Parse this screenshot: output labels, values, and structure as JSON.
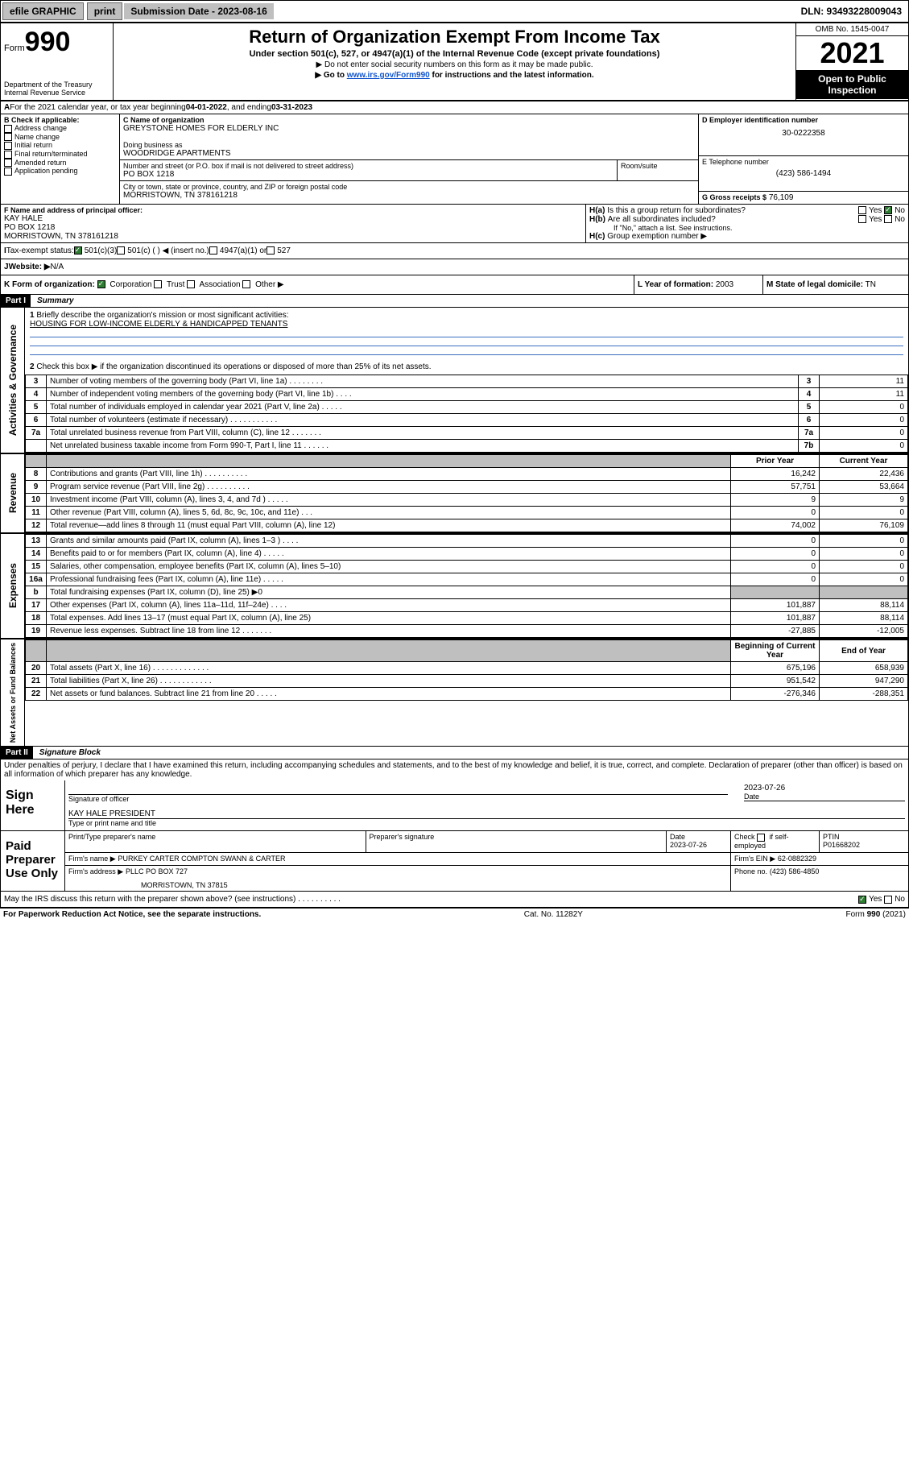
{
  "topbar": {
    "efile": "efile GRAPHIC",
    "print": "print",
    "submission": "Submission Date - 2023-08-16",
    "dln": "DLN: 93493228009043"
  },
  "header": {
    "form_label": "Form",
    "form_number": "990",
    "title": "Return of Organization Exempt From Income Tax",
    "subtitle": "Under section 501(c), 527, or 4947(a)(1) of the Internal Revenue Code (except private foundations)",
    "note1": "▶ Do not enter social security numbers on this form as it may be made public.",
    "note2_pre": "▶ Go to ",
    "note2_link": "www.irs.gov/Form990",
    "note2_post": " for instructions and the latest information.",
    "dept": "Department of the Treasury",
    "irs": "Internal Revenue Service",
    "omb": "OMB No. 1545-0047",
    "year": "2021",
    "open": "Open to Public Inspection"
  },
  "A": {
    "text": "For the 2021 calendar year, or tax year beginning ",
    "begin": "04-01-2022",
    "mid": " , and ending ",
    "end": "03-31-2023"
  },
  "B": {
    "label": "B Check if applicable:",
    "opts": [
      "Address change",
      "Name change",
      "Initial return",
      "Final return/terminated",
      "Amended return",
      "Application pending"
    ]
  },
  "C": {
    "name_label": "C Name of organization",
    "name": "GREYSTONE HOMES FOR ELDERLY INC",
    "dba_label": "Doing business as",
    "dba": "WOODRIDGE APARTMENTS",
    "street_label": "Number and street (or P.O. box if mail is not delivered to street address)",
    "room_label": "Room/suite",
    "street": "PO BOX 1218",
    "city_label": "City or town, state or province, country, and ZIP or foreign postal code",
    "city": "MORRISTOWN, TN  378161218"
  },
  "D": {
    "label": "D Employer identification number",
    "value": "30-0222358"
  },
  "E": {
    "label": "E Telephone number",
    "value": "(423) 586-1494"
  },
  "G": {
    "label": "G Gross receipts $",
    "value": "76,109"
  },
  "F": {
    "label": "F Name and address of principal officer:",
    "name": "KAY HALE",
    "street": "PO BOX 1218",
    "city": "MORRISTOWN, TN  378161218"
  },
  "H": {
    "a": "Is this a group return for subordinates?",
    "b": "Are all subordinates included?",
    "b_note": "If \"No,\" attach a list. See instructions.",
    "c": "Group exemption number ▶",
    "yes": "Yes",
    "no": "No"
  },
  "I": {
    "label": "Tax-exempt status:",
    "o1": "501(c)(3)",
    "o2": "501(c) (  ) ◀ (insert no.)",
    "o3": "4947(a)(1) or",
    "o4": "527"
  },
  "J": {
    "label": "Website: ▶",
    "value": "N/A"
  },
  "K": {
    "label": "K Form of organization:",
    "o1": "Corporation",
    "o2": "Trust",
    "o3": "Association",
    "o4": "Other ▶"
  },
  "L": {
    "label": "L Year of formation:",
    "value": "2003"
  },
  "M": {
    "label": "M State of legal domicile:",
    "value": "TN"
  },
  "part1": {
    "tag": "Part I",
    "title": "Summary",
    "q1_label": "Briefly describe the organization's mission or most significant activities:",
    "q1_value": "HOUSING FOR LOW-INCOME ELDERLY & HANDICAPPED TENANTS",
    "q2": "Check this box ▶        if the organization discontinued its operations or disposed of more than 25% of its net assets.",
    "rows_gov": [
      {
        "n": "3",
        "t": "Number of voting members of the governing body (Part VI, line 1a)  .   .   .   .   .   .   .   .",
        "b": "3",
        "v": "11"
      },
      {
        "n": "4",
        "t": "Number of independent voting members of the governing body (Part VI, line 1b)   .   .   .   .",
        "b": "4",
        "v": "11"
      },
      {
        "n": "5",
        "t": "Total number of individuals employed in calendar year 2021 (Part V, line 2a)   .   .   .   .   .",
        "b": "5",
        "v": "0"
      },
      {
        "n": "6",
        "t": "Total number of volunteers (estimate if necessary)   .   .   .   .   .   .   .   .   .   .   .",
        "b": "6",
        "v": "0"
      },
      {
        "n": "7a",
        "t": "Total unrelated business revenue from Part VIII, column (C), line 12   .   .   .   .   .   .   .",
        "b": "7a",
        "v": "0"
      },
      {
        "n": "",
        "t": "Net unrelated business taxable income from Form 990-T, Part I, line 11   .   .   .   .   .   .",
        "b": "7b",
        "v": "0"
      }
    ],
    "ph_prior": "Prior Year",
    "ph_current": "Current Year",
    "rows_rev": [
      {
        "n": "8",
        "t": "Contributions and grants (Part VIII, line 1h)   .   .   .   .   .   .   .   .   .   .",
        "p": "16,242",
        "c": "22,436"
      },
      {
        "n": "9",
        "t": "Program service revenue (Part VIII, line 2g)   .   .   .   .   .   .   .   .   .   .",
        "p": "57,751",
        "c": "53,664"
      },
      {
        "n": "10",
        "t": "Investment income (Part VIII, column (A), lines 3, 4, and 7d )   .   .   .   .   .",
        "p": "9",
        "c": "9"
      },
      {
        "n": "11",
        "t": "Other revenue (Part VIII, column (A), lines 5, 6d, 8c, 9c, 10c, and 11e)   .   .   .",
        "p": "0",
        "c": "0"
      },
      {
        "n": "12",
        "t": "Total revenue—add lines 8 through 11 (must equal Part VIII, column (A), line 12)",
        "p": "74,002",
        "c": "76,109"
      }
    ],
    "rows_exp": [
      {
        "n": "13",
        "t": "Grants and similar amounts paid (Part IX, column (A), lines 1–3 )   .   .   .   .",
        "p": "0",
        "c": "0"
      },
      {
        "n": "14",
        "t": "Benefits paid to or for members (Part IX, column (A), line 4)   .   .   .   .   .",
        "p": "0",
        "c": "0"
      },
      {
        "n": "15",
        "t": "Salaries, other compensation, employee benefits (Part IX, column (A), lines 5–10)",
        "p": "0",
        "c": "0"
      },
      {
        "n": "16a",
        "t": "Professional fundraising fees (Part IX, column (A), line 11e)   .   .   .   .   .",
        "p": "0",
        "c": "0"
      },
      {
        "n": "b",
        "t": "Total fundraising expenses (Part IX, column (D), line 25) ▶0",
        "p": "",
        "c": "",
        "shade": true
      },
      {
        "n": "17",
        "t": "Other expenses (Part IX, column (A), lines 11a–11d, 11f–24e)   .   .   .   .",
        "p": "101,887",
        "c": "88,114"
      },
      {
        "n": "18",
        "t": "Total expenses. Add lines 13–17 (must equal Part IX, column (A), line 25)",
        "p": "101,887",
        "c": "88,114"
      },
      {
        "n": "19",
        "t": "Revenue less expenses. Subtract line 18 from line 12   .   .   .   .   .   .   .",
        "p": "-27,885",
        "c": "-12,005"
      }
    ],
    "ph_begin": "Beginning of Current Year",
    "ph_end": "End of Year",
    "rows_net": [
      {
        "n": "20",
        "t": "Total assets (Part X, line 16)   .   .   .   .   .   .   .   .   .   .   .   .   .",
        "p": "675,196",
        "c": "658,939"
      },
      {
        "n": "21",
        "t": "Total liabilities (Part X, line 26)   .   .   .   .   .   .   .   .   .   .   .   .",
        "p": "951,542",
        "c": "947,290"
      },
      {
        "n": "22",
        "t": "Net assets or fund balances. Subtract line 21 from line 20   .   .   .   .   .",
        "p": "-276,346",
        "c": "-288,351"
      }
    ],
    "side_gov": "Activities & Governance",
    "side_rev": "Revenue",
    "side_exp": "Expenses",
    "side_net": "Net Assets or Fund Balances"
  },
  "part2": {
    "tag": "Part II",
    "title": "Signature Block",
    "decl": "Under penalties of perjury, I declare that I have examined this return, including accompanying schedules and statements, and to the best of my knowledge and belief, it is true, correct, and complete. Declaration of preparer (other than officer) is based on all information of which preparer has any knowledge.",
    "sign_here": "Sign Here",
    "sig_officer": "Signature of officer",
    "sig_date_label": "Date",
    "sig_date": "2023-07-26",
    "sig_name": "KAY HALE  PRESIDENT",
    "sig_name_label": "Type or print name and title",
    "paid": "Paid Preparer Use Only",
    "prep_name_label": "Print/Type preparer's name",
    "prep_sig_label": "Preparer's signature",
    "prep_date_label": "Date",
    "prep_date": "2023-07-26",
    "prep_check": "Check        if self-employed",
    "ptin_label": "PTIN",
    "ptin": "P01668202",
    "firm_name_label": "Firm's name     ▶",
    "firm_name": "PURKEY CARTER COMPTON SWANN & CARTER",
    "firm_ein_label": "Firm's EIN ▶",
    "firm_ein": "62-0882329",
    "firm_addr_label": "Firm's address ▶",
    "firm_addr1": "PLLC PO BOX 727",
    "firm_addr2": "MORRISTOWN, TN  37815",
    "firm_phone_label": "Phone no.",
    "firm_phone": "(423) 586-4850",
    "may_irs": "May the IRS discuss this return with the preparer shown above? (see instructions)   .   .   .   .   .   .   .   .   .   .",
    "yes": "Yes",
    "no": "No"
  },
  "footer": {
    "left": "For Paperwork Reduction Act Notice, see the separate instructions.",
    "mid": "Cat. No. 11282Y",
    "right": "Form 990 (2021)"
  }
}
